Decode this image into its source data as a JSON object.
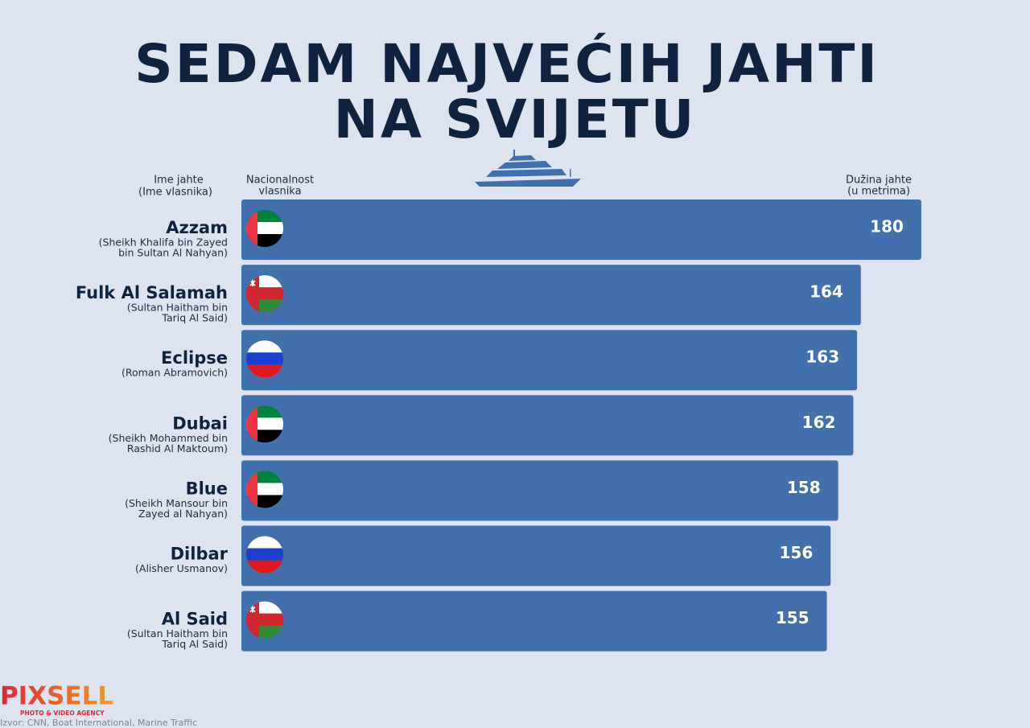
{
  "chart_data": {
    "type": "bar",
    "title": [
      "SEDAM NAJVEĆIH JAHTI",
      "NA SVIJETU"
    ],
    "headers": {
      "name": [
        "Ime jahte",
        "(Ime vlasnika)"
      ],
      "nationality": [
        "Nacionalnost",
        "vlasnika"
      ],
      "length": [
        "Dužina jahte",
        "(u metrima)"
      ]
    },
    "categories": [
      "Azzam",
      "Fulk Al Salamah",
      "Eclipse",
      "Dubai",
      "Blue",
      "Dilbar",
      "Al Said"
    ],
    "owners": [
      [
        "(Sheikh Khalifa bin Zayed",
        "bin Sultan Al Nahyan)"
      ],
      [
        "(Sultan Haitham bin",
        "Tariq Al Said)"
      ],
      [
        "(Roman Abramovich)"
      ],
      [
        "(Sheikh Mohammed bin",
        "Rashid Al Maktoum)"
      ],
      [
        "(Sheikh Mansour bin",
        "Zayed al Nahyan)"
      ],
      [
        "(Alisher Usmanov)"
      ],
      [
        "(Sultan Haitham bin",
        "Tariq Al Said)"
      ]
    ],
    "flags": [
      "AE",
      "OM",
      "RU",
      "AE",
      "AE",
      "RU",
      "OM"
    ],
    "values": [
      180,
      164,
      163,
      162,
      158,
      156,
      155
    ],
    "color": "#4270ad",
    "logo": {
      "name": "PIXSELL",
      "tagline": "PHOTO & VIDEO AGENCY"
    },
    "source": "Izvor: CNN, Boat International, Marine Traffic"
  }
}
